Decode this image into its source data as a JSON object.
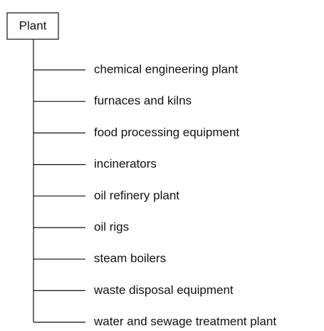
{
  "root": {
    "label": "Plant"
  },
  "children": [
    {
      "label": "chemical engineering plant"
    },
    {
      "label": "furnaces and kilns"
    },
    {
      "label": "food processing equipment"
    },
    {
      "label": "incinerators"
    },
    {
      "label": "oil refinery plant"
    },
    {
      "label": "oil rigs"
    },
    {
      "label": "steam boilers"
    },
    {
      "label": "waste disposal equipment"
    },
    {
      "label": "water and sewage treatment plant"
    }
  ]
}
